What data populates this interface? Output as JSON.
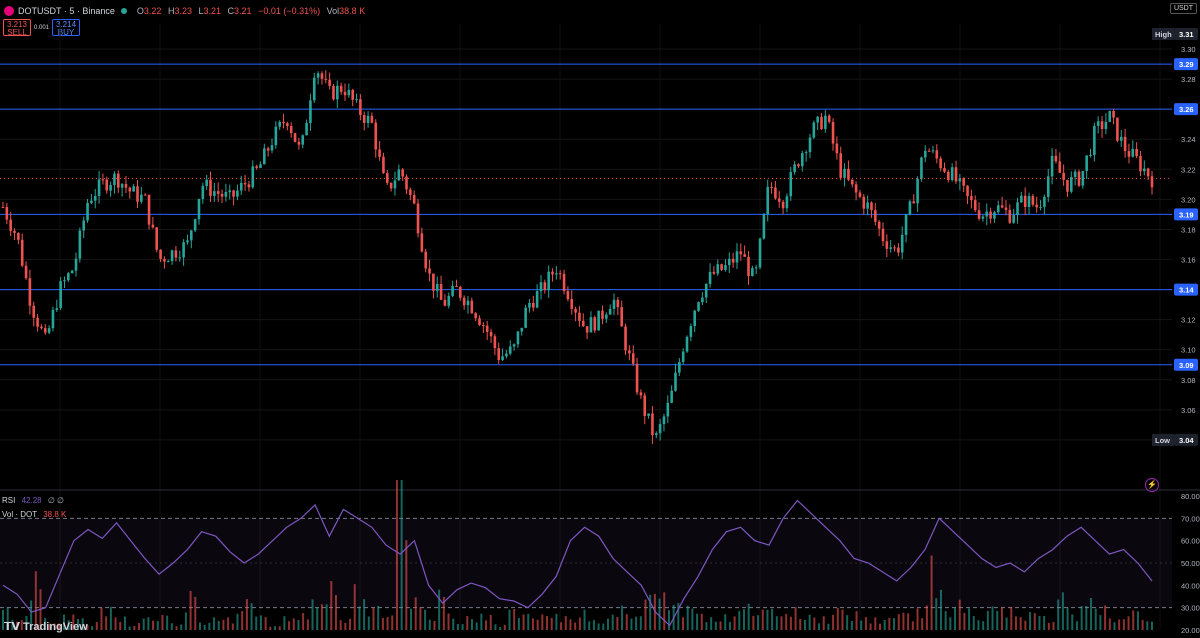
{
  "header": {
    "symbol": "DOTUSDT · 5 · Binance",
    "open_label": "O",
    "open": "3.22",
    "high_label": "H",
    "high": "3.23",
    "low_label": "L",
    "low": "3.21",
    "close_label": "C",
    "close": "3.21",
    "change": "−0.01 (−0.31%)",
    "vol_label": "Vol",
    "vol": "38.8 K",
    "currency": "USDT"
  },
  "trade": {
    "sell_price": "3.213",
    "sell_label": "SELL",
    "spread": "0.001",
    "buy_price": "3.214",
    "buy_label": "BUY"
  },
  "indicators": {
    "rsi_name": "RSI",
    "rsi_value": "42.28",
    "rsi_extra": "∅ ∅",
    "vol_name": "Vol · DOT",
    "vol_value": "38.8 K"
  },
  "watermark": "TradingView",
  "colors": {
    "up": "#26a69a",
    "down": "#ef5350",
    "hline": "#2962ff",
    "rsi": "#7e57c2",
    "last": "#ef5350"
  },
  "chart_data": [
    {
      "type": "candlestick",
      "ylim": [
        3.02,
        3.31
      ],
      "yticks": [
        "3.30",
        "3.28",
        "3.26",
        "3.24",
        "3.22",
        "3.20",
        "3.18",
        "3.16",
        "3.14",
        "3.12",
        "3.10",
        "3.08",
        "3.06",
        "3.04"
      ],
      "horizontal_levels": [
        3.29,
        3.26,
        3.19,
        3.14,
        3.09
      ],
      "axis_badges": [
        {
          "label": "High",
          "value": "3.31"
        },
        {
          "label": "",
          "value": "3.29"
        },
        {
          "label": "",
          "value": "3.26"
        },
        {
          "label": "",
          "value": "3.19"
        },
        {
          "label": "",
          "value": "3.14"
        },
        {
          "label": "",
          "value": "3.09"
        },
        {
          "label": "Low",
          "value": "3.04"
        }
      ],
      "last_price": 3.214,
      "close_path": [
        3.195,
        3.175,
        3.13,
        3.105,
        3.14,
        3.155,
        3.2,
        3.21,
        3.215,
        3.205,
        3.2,
        3.16,
        3.165,
        3.17,
        3.21,
        3.205,
        3.2,
        3.21,
        3.22,
        3.24,
        3.255,
        3.23,
        3.29,
        3.27,
        3.275,
        3.26,
        3.25,
        3.205,
        3.22,
        3.195,
        3.15,
        3.13,
        3.14,
        3.13,
        3.115,
        3.095,
        3.1,
        3.13,
        3.14,
        3.155,
        3.135,
        3.115,
        3.12,
        3.135,
        3.1,
        3.065,
        3.04,
        3.065,
        3.105,
        3.135,
        3.15,
        3.155,
        3.165,
        3.145,
        3.21,
        3.2,
        3.225,
        3.245,
        3.255,
        3.22,
        3.205,
        3.195,
        3.175,
        3.165,
        3.195,
        3.235,
        3.225,
        3.215,
        3.2,
        3.19,
        3.195,
        3.19,
        3.2,
        3.195,
        3.225,
        3.21,
        3.215,
        3.245,
        3.255,
        3.235,
        3.225,
        3.214
      ],
      "rsi": {
        "ylim": [
          20,
          80
        ],
        "levels": [
          70,
          30
        ],
        "ticks": [
          "80.00",
          "70.00",
          "60.00",
          "50.00",
          "40.00",
          "30.00",
          "20.00"
        ],
        "values": [
          40,
          36,
          28,
          30,
          45,
          60,
          65,
          61,
          68,
          60,
          52,
          45,
          50,
          56,
          64,
          62,
          55,
          50,
          54,
          60,
          66,
          70,
          76,
          62,
          74,
          70,
          66,
          58,
          54,
          60,
          40,
          32,
          38,
          41,
          39,
          34,
          33,
          30,
          36,
          44,
          60,
          66,
          62,
          52,
          46,
          40,
          28,
          22,
          34,
          44,
          56,
          64,
          66,
          60,
          58,
          70,
          78,
          72,
          66,
          60,
          52,
          50,
          46,
          42,
          48,
          56,
          70,
          64,
          58,
          52,
          48,
          50,
          46,
          52,
          56,
          62,
          66,
          60,
          54,
          56,
          50,
          42
        ],
        "current": 42.28
      },
      "volume": {
        "values": [
          3,
          2,
          9,
          2,
          2,
          2,
          1,
          3,
          2,
          1,
          2,
          2,
          1,
          5,
          1,
          3,
          2,
          4,
          2,
          1,
          2,
          3,
          6,
          8,
          2,
          7,
          3,
          2,
          22,
          4,
          3,
          5,
          2,
          2,
          2,
          1,
          3,
          2,
          2,
          2,
          2,
          3,
          2,
          2,
          3,
          4,
          9,
          6,
          4,
          3,
          2,
          2,
          3,
          4,
          3,
          2,
          4,
          3,
          2,
          3,
          3,
          2,
          2,
          2,
          3,
          3,
          11,
          3,
          4,
          2,
          3,
          3,
          2,
          3,
          2,
          5,
          3,
          4,
          3,
          2,
          3,
          3
        ]
      }
    }
  ]
}
